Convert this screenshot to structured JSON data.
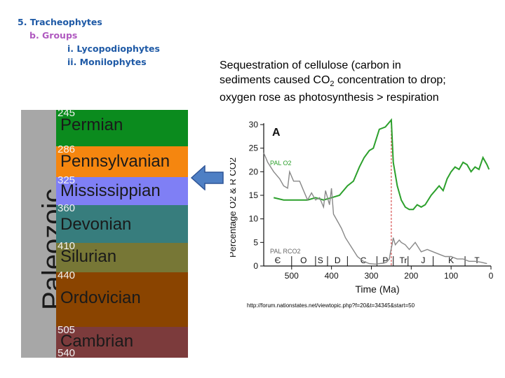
{
  "outline": {
    "line1": "5. Tracheophytes",
    "line2": "b. Groups",
    "line3": "i. Lycopodiophytes",
    "line4": "ii. Monilophytes"
  },
  "description": {
    "line1": "Sequestration of cellulose (carbon in",
    "line2_pre": "sediments caused CO",
    "line2_sub": "2",
    "line2_post": " concentration to drop;",
    "line3": "oxygen rose as photosynthesis > respiration"
  },
  "column": {
    "era": "Paleozoic",
    "era_color": "#a7a7a7",
    "periods": [
      {
        "name": "Permian",
        "age": "245",
        "color": "#0b8b1e"
      },
      {
        "name": "Pennsylvanian",
        "age": "286",
        "color": "#f5860f"
      },
      {
        "name": "Mississippian",
        "age": "325",
        "color": "#7f7ff5"
      },
      {
        "name": "Devonian",
        "age": "360",
        "color": "#377d7d"
      },
      {
        "name": "Silurian",
        "age": "410",
        "color": "#777736"
      },
      {
        "name": "Ordovician",
        "age": "440",
        "color": "#8a4400"
      },
      {
        "name": "Cambrian",
        "age": "505",
        "color": "#7c3b3c"
      }
    ],
    "bottom_age": "540"
  },
  "arrow_color": "#4e7fc4",
  "chart_data": {
    "type": "line",
    "panel_label": "A",
    "xlabel": "Time (Ma)",
    "ylabel": "Percentage O2 & R CO2",
    "xlim": [
      570,
      0
    ],
    "ylim": [
      0,
      30
    ],
    "xticks": [
      500,
      400,
      300,
      200,
      100,
      0
    ],
    "yticks": [
      0,
      5,
      10,
      15,
      20,
      25,
      30
    ],
    "periods": [
      "Є",
      "O",
      "S",
      "D",
      "C",
      "P",
      "Tr",
      "J",
      "K",
      "T"
    ],
    "annotations": [
      "PAL O2",
      "PAL RCO2"
    ],
    "marker_x": 250,
    "series": [
      {
        "color": "#2ca02c",
        "x": [
          545,
          520,
          490,
          460,
          440,
          420,
          400,
          380,
          360,
          345,
          330,
          318,
          305,
          295,
          280,
          265,
          250,
          245,
          235,
          225,
          215,
          205,
          195,
          185,
          175,
          165,
          150,
          140,
          130,
          120,
          110,
          100,
          90,
          80,
          70,
          60,
          50,
          40,
          30,
          20,
          10,
          5
        ],
        "y": [
          14.5,
          14,
          14,
          14,
          14.5,
          14,
          14.5,
          15,
          17,
          18,
          21,
          23,
          24.5,
          25,
          29,
          29.5,
          31,
          22,
          17,
          14,
          12.5,
          12,
          12,
          13,
          12.5,
          13,
          15,
          16,
          17,
          16,
          18.5,
          20,
          21,
          20.5,
          22,
          21.5,
          20,
          21,
          20.5,
          23,
          21.5,
          20.5
        ]
      },
      {
        "color": "#888888",
        "x": [
          570,
          560,
          545,
          530,
          520,
          510,
          505,
          495,
          480,
          470,
          460,
          450,
          440,
          430,
          420,
          415,
          405,
          400,
          395,
          385,
          375,
          365,
          350,
          335,
          320,
          305,
          290,
          280,
          270,
          262,
          255,
          252,
          248,
          245,
          240,
          235,
          230,
          225,
          215,
          205,
          190,
          175,
          160,
          145,
          130,
          115,
          100,
          85,
          70,
          55,
          40,
          25,
          10
        ],
        "y": [
          24,
          22,
          20,
          18.5,
          17,
          16.5,
          20,
          18,
          18,
          16,
          14,
          15.5,
          14,
          14.5,
          12.5,
          16,
          13,
          16.5,
          11,
          9.5,
          8,
          6,
          4,
          2,
          1,
          0.5,
          0.4,
          0.5,
          0.6,
          0.8,
          1.5,
          3,
          4.5,
          6,
          4.5,
          5,
          5.5,
          5,
          4.5,
          3.5,
          5,
          3,
          3.5,
          3,
          2.5,
          2,
          2,
          1.5,
          1.5,
          1,
          1,
          0.8,
          0.5
        ]
      }
    ]
  },
  "source_url": "http://forum.nationstates.net/viewtopic.php?f=20&t=34345&start=50"
}
